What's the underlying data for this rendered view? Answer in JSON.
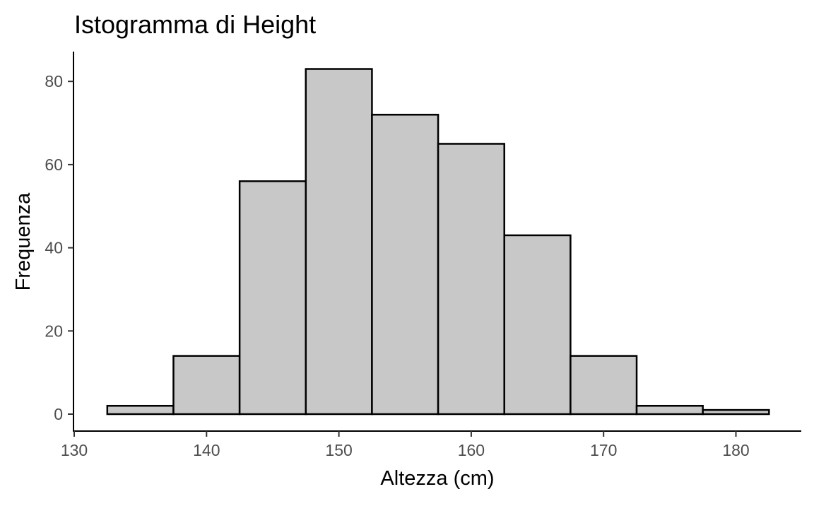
{
  "chart_data": {
    "type": "bar",
    "title": "Istogramma di Height",
    "xlabel": "Altezza (cm)",
    "ylabel": "Frequenza",
    "bin_width": 5,
    "bins": [
      {
        "from": 132.5,
        "to": 137.5,
        "count": 2
      },
      {
        "from": 137.5,
        "to": 142.5,
        "count": 14
      },
      {
        "from": 142.5,
        "to": 147.5,
        "count": 56
      },
      {
        "from": 147.5,
        "to": 152.5,
        "count": 83
      },
      {
        "from": 152.5,
        "to": 157.5,
        "count": 72
      },
      {
        "from": 157.5,
        "to": 162.5,
        "count": 65
      },
      {
        "from": 162.5,
        "to": 167.5,
        "count": 43
      },
      {
        "from": 167.5,
        "to": 172.5,
        "count": 14
      },
      {
        "from": 172.5,
        "to": 177.5,
        "count": 2
      },
      {
        "from": 177.5,
        "to": 182.5,
        "count": 1
      }
    ],
    "xlim": [
      130,
      185
    ],
    "ylim": [
      0,
      87
    ],
    "x_ticks": [
      130,
      140,
      150,
      160,
      170,
      180
    ],
    "y_ticks": [
      0,
      20,
      40,
      60,
      80
    ],
    "grid": false,
    "legend": "none",
    "bar_fill": "#c8c8c8",
    "bar_stroke": "#000000"
  }
}
